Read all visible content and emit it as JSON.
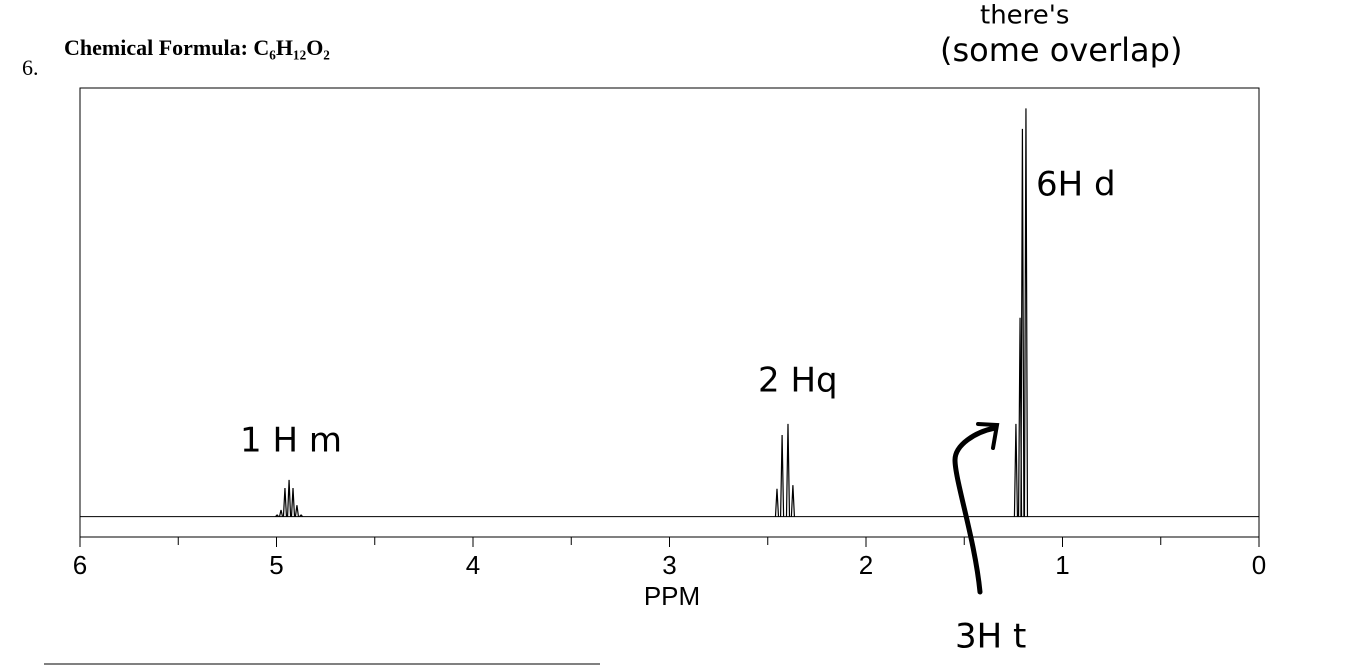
{
  "chart_data": {
    "type": "nmr",
    "number": "6.",
    "title": "Chemical Formula: C₆H₁₂O₂",
    "xlabel": "PPM",
    "x": [
      4.997,
      4.977,
      4.957,
      4.936,
      4.916,
      4.896,
      4.875,
      2.453,
      2.427,
      2.397,
      2.372,
      1.237,
      1.216,
      1.204,
      1.186
    ],
    "values": [
      0.4,
      1.6,
      7,
      9,
      7,
      2.8,
      0.4,
      6.8,
      20,
      22.7,
      7.7,
      22.7,
      48.7,
      95,
      100
    ],
    "color": "#000000",
    "xlim": [
      6,
      0
    ],
    "xticks": [
      6,
      5,
      4,
      3,
      2,
      1,
      0
    ],
    "xminorticks": [
      5.5,
      4.5,
      3.5,
      2.5,
      1.5,
      0.5
    ],
    "ylim": [
      -5,
      105
    ],
    "annotations": [
      "there's",
      "(some overlap)",
      "1 H m",
      "2 Hq",
      "6H d",
      "3H t"
    ]
  }
}
